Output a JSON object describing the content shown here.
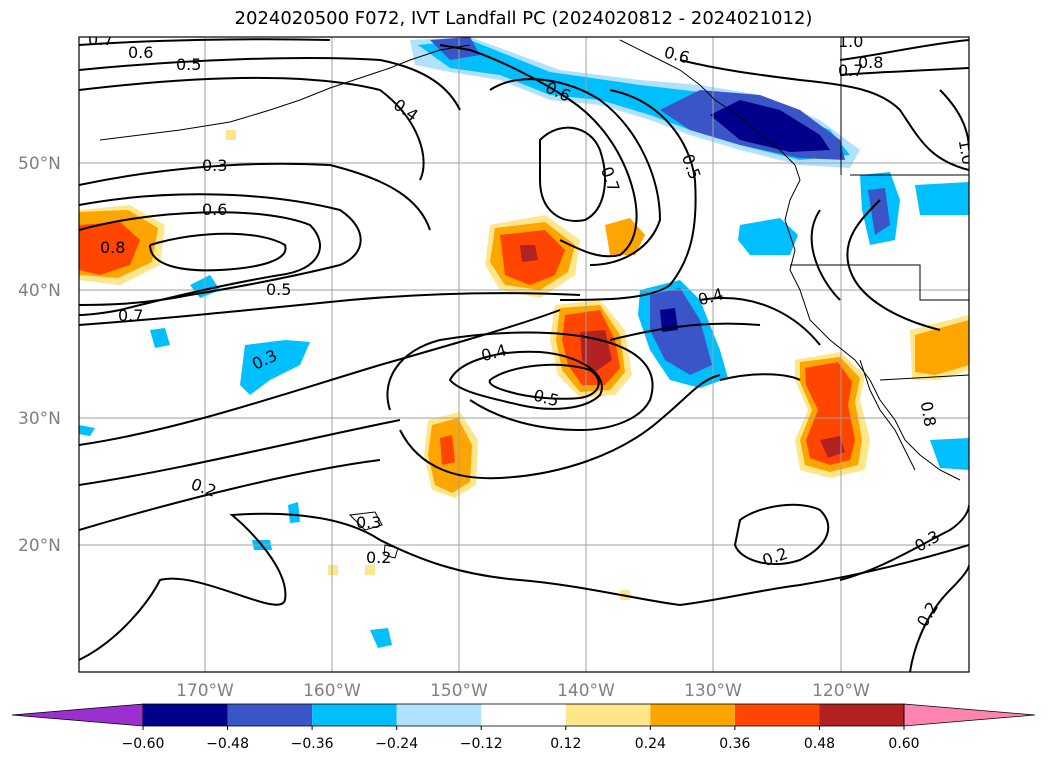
{
  "title": "2024020500 F072, IVT Landfall PC (2024020812 - 2024021012)",
  "map": {
    "lat_labels": [
      "50°N",
      "40°N",
      "30°N",
      "20°N"
    ],
    "lon_labels": [
      "170°W",
      "160°W",
      "150°W",
      "140°W",
      "130°W",
      "120°W"
    ],
    "contour_labels": [
      "0.7",
      "0.6",
      "0.5",
      "0.4",
      "0.3",
      "0.6",
      "0.8",
      "0.5",
      "0.7",
      "0.3",
      "0.2",
      "0.3",
      "0.2",
      "0.6",
      "0.7",
      "0.5",
      "0.4",
      "0.4",
      "0.5",
      "0.6",
      "0.8",
      "1.0",
      "0.7",
      "0.2",
      "0.3",
      "0.2",
      "0.8",
      "1.0"
    ]
  },
  "colorbar": {
    "ticks": [
      "−0.60",
      "−0.48",
      "−0.36",
      "−0.24",
      "−0.12",
      "0.12",
      "0.24",
      "0.36",
      "0.48",
      "0.60"
    ],
    "colors": [
      "#9b30d0",
      "#00008b",
      "#3a55c8",
      "#00bfff",
      "#b0e2ff",
      "#ffffff",
      "#ffe68a",
      "#ffa500",
      "#ff4500",
      "#b22222",
      "#ff85b0"
    ]
  }
}
